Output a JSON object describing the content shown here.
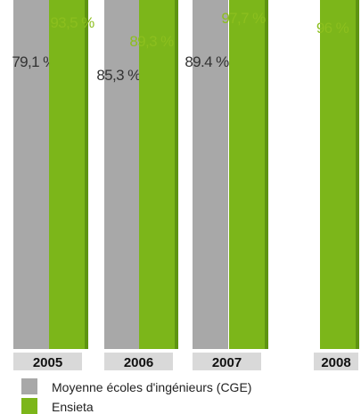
{
  "chart_data": {
    "type": "bar",
    "categories": [
      "2005",
      "2006",
      "2007",
      "2008"
    ],
    "series": [
      {
        "name": "Moyenne écoles d'ingénieurs (CGE)",
        "values": [
          79.1,
          85.3,
          89.4,
          null
        ],
        "labels": [
          "79,1 %",
          "85,3 %",
          "89.4 %",
          ""
        ]
      },
      {
        "name": "Ensieta",
        "values": [
          93.5,
          89.3,
          97.7,
          96
        ],
        "labels": [
          "93,5 %",
          "89,3 %",
          "97,7 %",
          "96 %"
        ]
      }
    ],
    "colors": {
      "cge": "#a8a8a8",
      "cge_top": "#8a8a8a",
      "ensieta": "#7cb61a",
      "ensieta_top": "#5e9412",
      "ensieta_label": "#8cbf1e",
      "year_band": "#d9d9d9"
    }
  }
}
